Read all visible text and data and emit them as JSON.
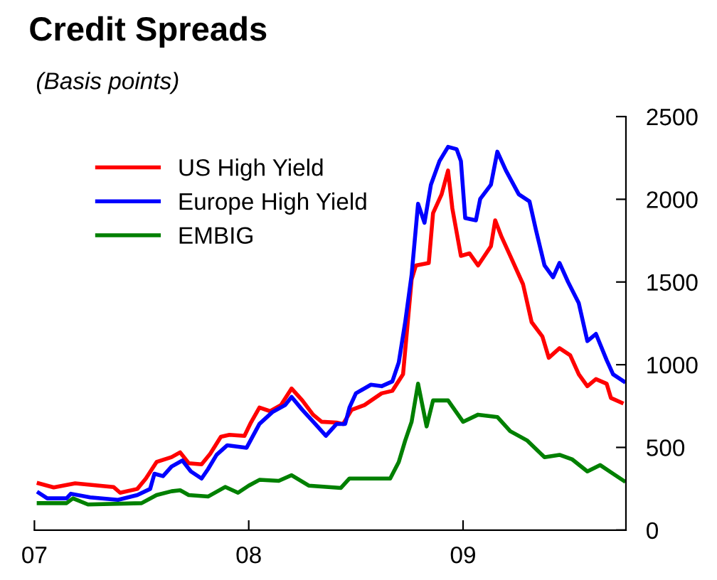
{
  "chart_data": {
    "type": "line",
    "title": "Credit Spreads",
    "subtitle": "(Basis points)",
    "xlim": [
      2007,
      2009.76
    ],
    "xticks": [
      {
        "value": 2007,
        "label": "07"
      },
      {
        "value": 2008,
        "label": "08"
      },
      {
        "value": 2009,
        "label": "09"
      }
    ],
    "ylim": [
      0,
      2500
    ],
    "yticks": [
      0,
      500,
      1000,
      1500,
      2000,
      2500
    ],
    "grid": false,
    "legend": "top left",
    "line_style": "solid",
    "marker": "none",
    "series": [
      {
        "name": "US High Yield",
        "color": "#ff0000",
        "x": [
          2007.02,
          2007.09,
          2007.19,
          2007.37,
          2007.4,
          2007.48,
          2007.52,
          2007.57,
          2007.64,
          2007.68,
          2007.72,
          2007.78,
          2007.82,
          2007.87,
          2007.91,
          2007.98,
          2008.01,
          2008.05,
          2008.1,
          2008.15,
          2008.2,
          2008.25,
          2008.3,
          2008.34,
          2008.41,
          2008.44,
          2008.48,
          2008.54,
          2008.62,
          2008.67,
          2008.72,
          2008.74,
          2008.76,
          2008.78,
          2008.84,
          2008.86,
          2008.9,
          2008.93,
          2008.95,
          2008.99,
          2009.03,
          2009.07,
          2009.13,
          2009.15,
          2009.18,
          2009.22,
          2009.28,
          2009.32,
          2009.37,
          2009.4,
          2009.45,
          2009.5,
          2009.54,
          2009.58,
          2009.62,
          2009.67,
          2009.69,
          2009.74
        ],
        "values": [
          283,
          258,
          283,
          260,
          226,
          249,
          312,
          412,
          441,
          470,
          404,
          398,
          461,
          564,
          576,
          570,
          650,
          741,
          719,
          756,
          856,
          784,
          698,
          655,
          650,
          641,
          727,
          756,
          827,
          842,
          942,
          1229,
          1515,
          1600,
          1615,
          1916,
          2030,
          2174,
          1945,
          1658,
          1673,
          1600,
          1716,
          1873,
          1772,
          1658,
          1486,
          1257,
          1171,
          1042,
          1100,
          1057,
          942,
          870,
          913,
          885,
          799,
          770
        ]
      },
      {
        "name": "Europe High Yield",
        "color": "#0000ff",
        "x": [
          2007.02,
          2007.06,
          2007.15,
          2007.17,
          2007.26,
          2007.39,
          2007.48,
          2007.54,
          2007.56,
          2007.6,
          2007.64,
          2007.69,
          2007.73,
          2007.78,
          2007.81,
          2007.85,
          2007.9,
          2007.99,
          2008.02,
          2008.05,
          2008.11,
          2008.17,
          2008.2,
          2008.25,
          2008.31,
          2008.36,
          2008.41,
          2008.45,
          2008.47,
          2008.5,
          2008.57,
          2008.62,
          2008.67,
          2008.7,
          2008.73,
          2008.76,
          2008.79,
          2008.82,
          2008.85,
          2008.89,
          2008.93,
          2008.97,
          2008.99,
          2009.01,
          2009.06,
          2009.08,
          2009.13,
          2009.16,
          2009.2,
          2009.26,
          2009.31,
          2009.34,
          2009.38,
          2009.42,
          2009.45,
          2009.49,
          2009.54,
          2009.58,
          2009.62,
          2009.67,
          2009.7,
          2009.75
        ],
        "values": [
          226,
          192,
          192,
          220,
          198,
          183,
          212,
          249,
          341,
          326,
          384,
          421,
          355,
          312,
          369,
          455,
          513,
          498,
          570,
          642,
          713,
          756,
          805,
          727,
          642,
          570,
          642,
          642,
          741,
          827,
          879,
          870,
          899,
          1014,
          1257,
          1543,
          1973,
          1858,
          2088,
          2231,
          2317,
          2303,
          2231,
          1887,
          1873,
          2002,
          2088,
          2288,
          2174,
          2030,
          1987,
          1815,
          1600,
          1529,
          1615,
          1500,
          1372,
          1143,
          1186,
          1028,
          942,
          899
        ]
      },
      {
        "name": "EMBIG",
        "color": "#008000",
        "x": [
          2007.02,
          2007.15,
          2007.18,
          2007.25,
          2007.5,
          2007.57,
          2007.64,
          2007.68,
          2007.72,
          2007.81,
          2007.89,
          2007.95,
          2008.0,
          2008.05,
          2008.14,
          2008.2,
          2008.28,
          2008.43,
          2008.47,
          2008.62,
          2008.66,
          2008.7,
          2008.73,
          2008.76,
          2008.79,
          2008.83,
          2008.86,
          2008.93,
          2009.0,
          2009.07,
          2009.16,
          2009.22,
          2009.3,
          2009.38,
          2009.45,
          2009.51,
          2009.58,
          2009.64,
          2009.7,
          2009.75
        ],
        "values": [
          163,
          163,
          192,
          155,
          163,
          212,
          235,
          241,
          212,
          203,
          261,
          226,
          269,
          304,
          298,
          332,
          269,
          255,
          312,
          312,
          312,
          412,
          541,
          655,
          885,
          627,
          784,
          784,
          655,
          698,
          684,
          598,
          541,
          441,
          455,
          427,
          355,
          393,
          341,
          298
        ]
      }
    ]
  }
}
